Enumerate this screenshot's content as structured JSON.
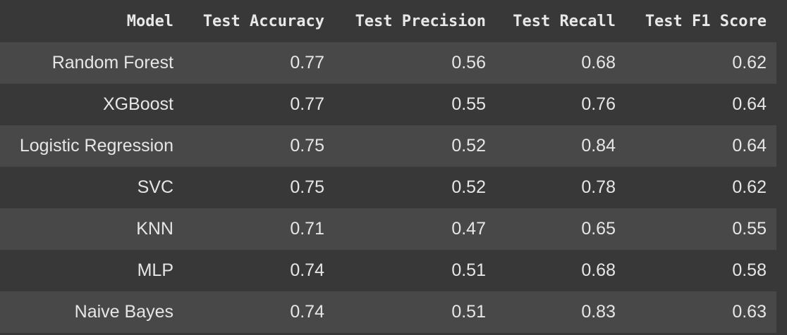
{
  "table": {
    "columns": [
      "Model",
      "Test Accuracy",
      "Test Precision",
      "Test Recall",
      "Test F1 Score"
    ],
    "rows": [
      [
        "Random Forest",
        "0.77",
        "0.56",
        "0.68",
        "0.62"
      ],
      [
        "XGBoost",
        "0.77",
        "0.55",
        "0.76",
        "0.64"
      ],
      [
        "Logistic Regression",
        "0.75",
        "0.52",
        "0.84",
        "0.64"
      ],
      [
        "SVC",
        "0.75",
        "0.52",
        "0.78",
        "0.62"
      ],
      [
        "KNN",
        "0.71",
        "0.47",
        "0.65",
        "0.55"
      ],
      [
        "MLP",
        "0.74",
        "0.51",
        "0.68",
        "0.58"
      ],
      [
        "Naive Bayes",
        "0.74",
        "0.51",
        "0.83",
        "0.63"
      ]
    ]
  },
  "colors": {
    "background": "#383838",
    "row_alt": "#484848",
    "text": "#e6e6e6"
  }
}
